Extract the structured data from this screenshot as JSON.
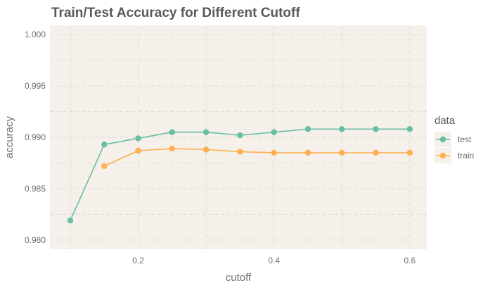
{
  "chart_data": {
    "type": "line",
    "title": "Train/Test Accuracy for Different Cutoff",
    "xlabel": "cutoff",
    "ylabel": "accuracy",
    "xlim": [
      0.07,
      0.625
    ],
    "ylim": [
      0.9791,
      1.0009
    ],
    "x_ticks": [
      0.2,
      0.4,
      0.6
    ],
    "x_tick_labels": [
      "0.2",
      "0.4",
      "0.6"
    ],
    "y_ticks": [
      0.98,
      0.985,
      0.99,
      0.995,
      1.0
    ],
    "y_tick_labels": [
      "0.980",
      "0.985",
      "0.990",
      "0.995",
      "1.000"
    ],
    "x_minor_ticks": [
      0.1,
      0.3,
      0.5
    ],
    "y_minor_ticks": [
      0.9825,
      0.9875,
      0.9925,
      0.9975
    ],
    "grid": true,
    "panel_background": "#f5f0e9",
    "grid_color": "#dcdcdc",
    "legend": {
      "title": "data",
      "position": "right",
      "background": "#f5f0e9"
    },
    "series": [
      {
        "name": "test",
        "color": "#66bfa4",
        "x": [
          0.1,
          0.15,
          0.2,
          0.25,
          0.3,
          0.35,
          0.4,
          0.45,
          0.5,
          0.55,
          0.6
        ],
        "y": [
          0.9819,
          0.9893,
          0.9899,
          0.9905,
          0.9905,
          0.9902,
          0.9905,
          0.9908,
          0.9908,
          0.9908,
          0.9908
        ]
      },
      {
        "name": "train",
        "color": "#fdb050",
        "x": [
          0.15,
          0.2,
          0.25,
          0.3,
          0.35,
          0.4,
          0.45,
          0.5,
          0.55,
          0.6
        ],
        "y": [
          0.9872,
          0.9887,
          0.9889,
          0.9888,
          0.9886,
          0.9885,
          0.9885,
          0.9885,
          0.9885,
          0.9885
        ]
      }
    ]
  }
}
